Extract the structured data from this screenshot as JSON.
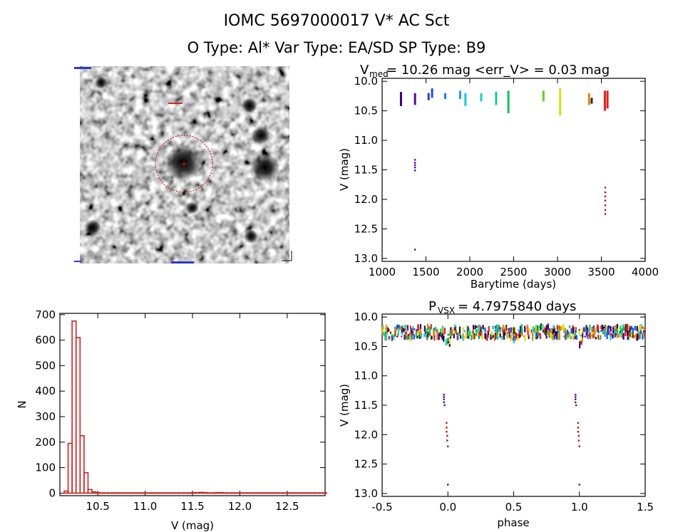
{
  "header": {
    "title": "IOMC 5697000017    V* AC Sct",
    "subtitle": "O Type: Al*  Var Type: EA/SD  SP Type: B9"
  },
  "image_panel": {
    "circle_color": "#cc2222"
  },
  "chart_data": [
    {
      "id": "lightcurve",
      "type": "scatter",
      "title_main": "V",
      "title_sub": "med",
      "title_rest": " = 10.26 mag <err_V> = 0.03 mag",
      "xlabel": "Barytime (days)",
      "ylabel": "V (mag)",
      "xlim": [
        1000,
        4000
      ],
      "ylim": [
        13.05,
        9.95
      ],
      "xticks": [
        1000,
        1500,
        2000,
        2500,
        3000,
        3500,
        4000
      ],
      "xtick_labels": [
        "1000",
        "1500",
        "2000",
        "2500",
        "3000",
        "3500",
        "4000"
      ],
      "yticks": [
        10.0,
        10.5,
        11.0,
        11.5,
        12.0,
        12.5,
        13.0
      ],
      "ytick_labels": [
        "10.0",
        "10.5",
        "11.0",
        "11.5",
        "12.0",
        "12.5",
        "13.0"
      ],
      "groups": [
        {
          "x": 1215,
          "y": [
            10.18,
            10.42
          ],
          "color": "#3a007a"
        },
        {
          "x": 1375,
          "y": [
            10.2,
            10.4
          ],
          "color": "#4b0d8f"
        },
        {
          "x": 1530,
          "y": [
            10.2,
            10.32
          ],
          "color": "#2a3cc8"
        },
        {
          "x": 1570,
          "y": [
            10.12,
            10.28
          ],
          "color": "#2050e0"
        },
        {
          "x": 1720,
          "y": [
            10.2,
            10.3
          ],
          "color": "#1e7ce6"
        },
        {
          "x": 1890,
          "y": [
            10.16,
            10.3
          ],
          "color": "#1aa0e8"
        },
        {
          "x": 1950,
          "y": [
            10.2,
            10.42
          ],
          "color": "#18c8e0"
        },
        {
          "x": 2130,
          "y": [
            10.2,
            10.34
          ],
          "color": "#18d4b8"
        },
        {
          "x": 2300,
          "y": [
            10.18,
            10.4
          ],
          "color": "#18c890"
        },
        {
          "x": 2440,
          "y": [
            10.16,
            10.54
          ],
          "color": "#18c060"
        },
        {
          "x": 2840,
          "y": [
            10.16,
            10.34
          ],
          "color": "#60d020"
        },
        {
          "x": 3030,
          "y": [
            10.12,
            10.58
          ],
          "color": "#d8e010"
        },
        {
          "x": 3360,
          "y": [
            10.2,
            10.4
          ],
          "color": "#e88010"
        },
        {
          "x": 3390,
          "y": [
            10.28,
            10.38
          ],
          "color": "#2a2a2a"
        },
        {
          "x": 3540,
          "y": [
            10.16,
            10.5
          ],
          "color": "#e02020"
        },
        {
          "x": 3570,
          "y": [
            10.16,
            10.46
          ],
          "color": "#e02020"
        }
      ],
      "points": [
        {
          "x": 1375,
          "y": 11.33,
          "color": "#4b0d8f"
        },
        {
          "x": 1375,
          "y": 11.38,
          "color": "#4b0d8f"
        },
        {
          "x": 1375,
          "y": 11.42,
          "color": "#4b0d8f"
        },
        {
          "x": 1375,
          "y": 11.46,
          "color": "#4b0d8f"
        },
        {
          "x": 1375,
          "y": 11.51,
          "color": "#4b0d8f"
        },
        {
          "x": 1375,
          "y": 12.85,
          "color": "#4b0d8f"
        },
        {
          "x": 3545,
          "y": 11.8,
          "color": "#c01010"
        },
        {
          "x": 3545,
          "y": 11.88,
          "color": "#c01010"
        },
        {
          "x": 3545,
          "y": 11.95,
          "color": "#c01010"
        },
        {
          "x": 3545,
          "y": 12.02,
          "color": "#c01010"
        },
        {
          "x": 3545,
          "y": 12.1,
          "color": "#c01010"
        },
        {
          "x": 3545,
          "y": 12.18,
          "color": "#c01010"
        },
        {
          "x": 3545,
          "y": 12.25,
          "color": "#c01010"
        }
      ]
    },
    {
      "id": "histogram",
      "type": "bar",
      "title": "",
      "xlabel": "V (mag)",
      "ylabel": "N",
      "xlim": [
        10.1,
        12.9
      ],
      "ylim": [
        -10,
        705
      ],
      "xticks": [
        10.5,
        11.0,
        11.5,
        12.0,
        12.5
      ],
      "xtick_labels": [
        "10.5",
        "11.0",
        "11.5",
        "12.0",
        "12.5"
      ],
      "yticks": [
        0,
        100,
        200,
        300,
        400,
        500,
        600,
        700
      ],
      "ytick_labels": [
        "0",
        "100",
        "200",
        "300",
        "400",
        "500",
        "600",
        "700"
      ],
      "bin_start": 10.145,
      "bin_width": 0.042,
      "counts": [
        8,
        195,
        675,
        610,
        225,
        80,
        14,
        5,
        2,
        1,
        1,
        1,
        1,
        1,
        1,
        1,
        1,
        1,
        1,
        1,
        1,
        1,
        1,
        1,
        1,
        1,
        1,
        1,
        1,
        1,
        1,
        1,
        2,
        2,
        3,
        2,
        1,
        1,
        2,
        2,
        1,
        1,
        1,
        1,
        1,
        1,
        1,
        1,
        1,
        1,
        1,
        1,
        1,
        1,
        1,
        1,
        1,
        1,
        1,
        1,
        1,
        1,
        1,
        1,
        1,
        1
      ],
      "bar_color": "#cc2222"
    },
    {
      "id": "phased",
      "type": "scatter",
      "title_main": "P",
      "title_sub": "VSX",
      "title_rest": " = 4.7975840 days",
      "xlabel": "phase",
      "ylabel": "V (mag)",
      "xlim": [
        -0.5,
        1.5
      ],
      "ylim": [
        13.05,
        9.95
      ],
      "xticks": [
        -0.5,
        0.0,
        0.5,
        1.0,
        1.5
      ],
      "xtick_labels": [
        "-0.5",
        "0.0",
        "0.5",
        "1.0",
        "1.5"
      ],
      "yticks": [
        10.0,
        10.5,
        11.0,
        11.5,
        12.0,
        12.5,
        13.0
      ],
      "ytick_labels": [
        "10.0",
        "10.5",
        "11.0",
        "11.5",
        "12.0",
        "12.5",
        "13.0"
      ],
      "palette": [
        "#3a007a",
        "#2050e0",
        "#18c8e0",
        "#18c060",
        "#d8e010",
        "#e88010",
        "#e02020",
        "#1a1a1a"
      ],
      "band_base": 10.26,
      "band_spread": 0.1,
      "dips": [
        {
          "x": 0.0,
          "depth": 0.3
        },
        {
          "x": 1.0,
          "depth": 0.3
        },
        {
          "x": 0.5,
          "depth": 0.08
        }
      ],
      "eclipse_points": [
        {
          "x": -0.03,
          "y": 11.32,
          "color": "#4b0d8f"
        },
        {
          "x": -0.03,
          "y": 11.36,
          "color": "#4b0d8f"
        },
        {
          "x": -0.03,
          "y": 11.4,
          "color": "#4b0d8f"
        },
        {
          "x": -0.03,
          "y": 11.45,
          "color": "#4b0d8f"
        },
        {
          "x": -0.025,
          "y": 11.5,
          "color": "#4b0d8f"
        },
        {
          "x": 0.0,
          "y": 12.85,
          "color": "#4b0d8f"
        },
        {
          "x": -0.01,
          "y": 11.8,
          "color": "#c01010"
        },
        {
          "x": -0.01,
          "y": 11.88,
          "color": "#c01010"
        },
        {
          "x": -0.01,
          "y": 11.95,
          "color": "#c01010"
        },
        {
          "x": -0.005,
          "y": 12.02,
          "color": "#c01010"
        },
        {
          "x": -0.005,
          "y": 12.1,
          "color": "#c01010"
        },
        {
          "x": 0.0,
          "y": 12.2,
          "color": "#c01010"
        },
        {
          "x": 0.97,
          "y": 11.32,
          "color": "#4b0d8f"
        },
        {
          "x": 0.97,
          "y": 11.36,
          "color": "#4b0d8f"
        },
        {
          "x": 0.97,
          "y": 11.4,
          "color": "#4b0d8f"
        },
        {
          "x": 0.97,
          "y": 11.45,
          "color": "#4b0d8f"
        },
        {
          "x": 0.975,
          "y": 11.5,
          "color": "#4b0d8f"
        },
        {
          "x": 1.0,
          "y": 12.85,
          "color": "#4b0d8f"
        },
        {
          "x": 0.99,
          "y": 11.8,
          "color": "#c01010"
        },
        {
          "x": 0.99,
          "y": 11.88,
          "color": "#c01010"
        },
        {
          "x": 0.99,
          "y": 11.95,
          "color": "#c01010"
        },
        {
          "x": 0.995,
          "y": 12.02,
          "color": "#c01010"
        },
        {
          "x": 0.995,
          "y": 12.1,
          "color": "#c01010"
        },
        {
          "x": 1.0,
          "y": 12.2,
          "color": "#c01010"
        }
      ]
    }
  ]
}
